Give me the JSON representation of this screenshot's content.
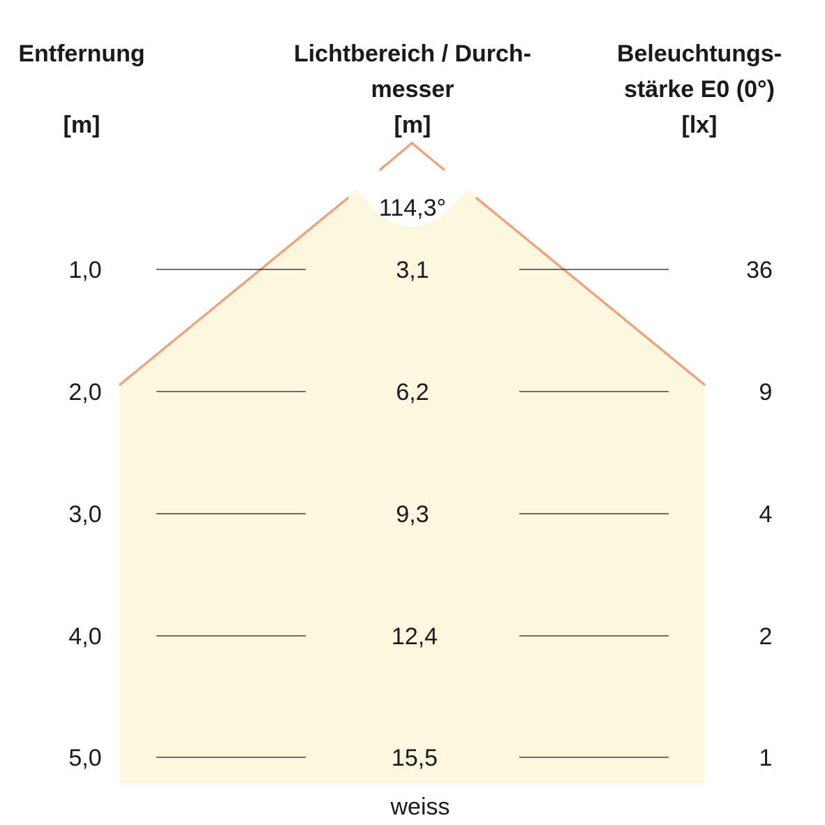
{
  "headers": {
    "distance": {
      "line1": "Entfernung",
      "unit": "[m]"
    },
    "diameter": {
      "line1": "Lichtbereich / Durch-",
      "line2": "messer",
      "unit": "[m]"
    },
    "illuminance": {
      "line1": "Beleuchtungs-",
      "line2": "stärke E0 (0°)",
      "unit": "[lx]"
    }
  },
  "beam_angle": "114,3°",
  "rows": [
    {
      "distance": "1,0",
      "diameter": "3,1",
      "illuminance": "36"
    },
    {
      "distance": "2,0",
      "diameter": "6,2",
      "illuminance": "9"
    },
    {
      "distance": "3,0",
      "diameter": "9,3",
      "illuminance": "4"
    },
    {
      "distance": "4,0",
      "diameter": "12,4",
      "illuminance": "2"
    },
    {
      "distance": "5,0",
      "diameter": "15,5",
      "illuminance": "1"
    }
  ],
  "color_label": "weiss",
  "colors": {
    "beam_fill": "#fdf7df",
    "beam_edge": "#eda57f",
    "text": "#1a1a1a",
    "rule": "#1a1a1a"
  }
}
